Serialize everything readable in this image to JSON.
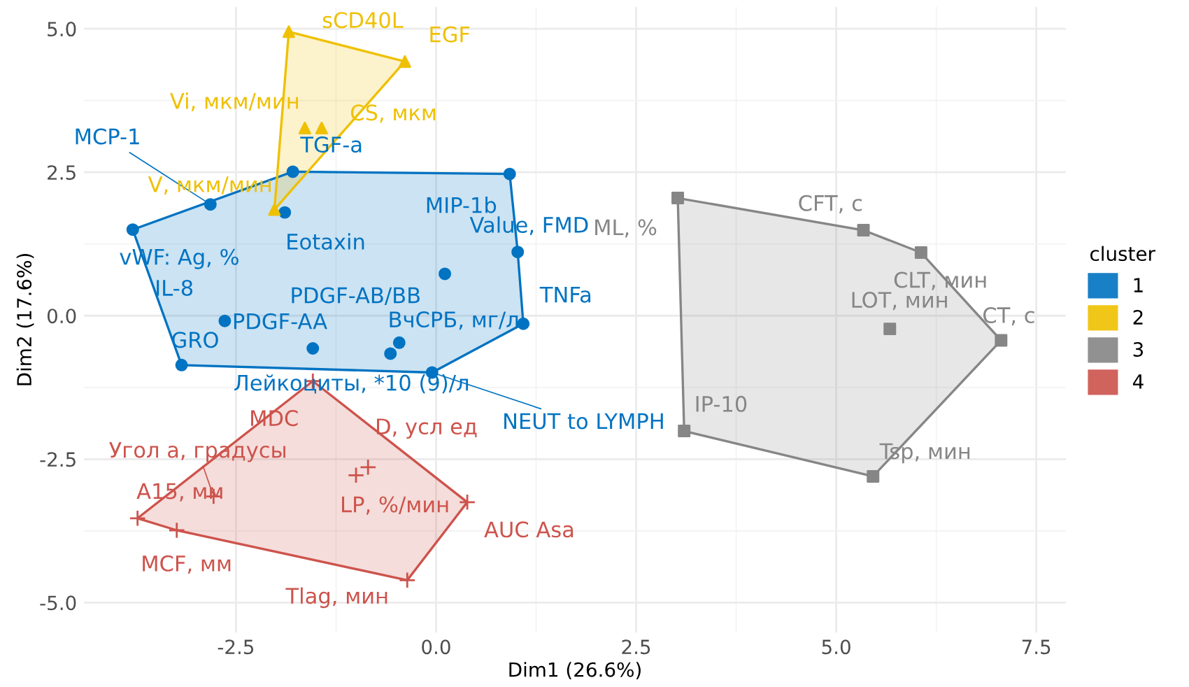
{
  "chart_data": {
    "type": "scatter",
    "xlabel": "Dim1 (26.6%)",
    "ylabel": "Dim2 (17.6%)",
    "legend_title": "cluster",
    "legend": "right",
    "grid": true,
    "xlim": [
      -4.4,
      7.87
    ],
    "ylim": [
      -5.52,
      5.38
    ],
    "xticks": [
      {
        "value": -2.5,
        "label": "-2.5"
      },
      {
        "value": 0,
        "label": "0.0"
      },
      {
        "value": 2.5,
        "label": "2.5"
      },
      {
        "value": 5,
        "label": "5.0"
      },
      {
        "value": 7.5,
        "label": "7.5"
      }
    ],
    "yticks": [
      {
        "value": -5,
        "label": "-5.0"
      },
      {
        "value": -2.5,
        "label": "-2.5"
      },
      {
        "value": 0,
        "label": "0.0"
      },
      {
        "value": 2.5,
        "label": "2.5"
      },
      {
        "value": 5,
        "label": "5.0"
      }
    ],
    "series": [
      {
        "name": "1",
        "color": "#0073c2",
        "marker": "circle",
        "x": [
          -1.79,
          0.92,
          -2.82,
          -3.79,
          -1.89,
          1.02,
          0.11,
          1.09,
          -2.64,
          -3.18,
          -1.54,
          -0.46,
          -0.57,
          -0.05
        ],
        "values": [
          2.51,
          2.47,
          1.94,
          1.5,
          1.8,
          1.11,
          0.73,
          -0.14,
          -0.09,
          -0.86,
          -0.57,
          -0.47,
          -0.66,
          -0.99
        ],
        "value_labels": [
          "TGF-a",
          "MIP-1b",
          "MCP-1",
          "vWF: Ag, %",
          "Eotaxin",
          "Value, FMD",
          "PDGF-AB/BB",
          "TNFa",
          "IL-8",
          "GRO",
          "PDGF-AA",
          "ВчСРБ, мг/л",
          "Лейкоциты, *10 (9)/л",
          "NEUT to LYMPH"
        ]
      },
      {
        "name": "2",
        "color": "#efc000",
        "marker": "triangle",
        "x": [
          -1.84,
          -0.39,
          -1.64,
          -1.43,
          -2.02
        ],
        "values": [
          4.95,
          4.43,
          3.27,
          3.27,
          1.85
        ],
        "value_labels": [
          "sCD40L",
          "EGF",
          "Vi, мкм/мин",
          "CS, мкм",
          "V, мкм/мин"
        ]
      },
      {
        "name": "3",
        "color": "#868686",
        "marker": "square",
        "x": [
          3.02,
          5.34,
          6.06,
          5.67,
          7.06,
          3.1,
          5.46
        ],
        "values": [
          2.05,
          1.49,
          1.1,
          -0.23,
          -0.43,
          -2.01,
          -2.8
        ],
        "value_labels": [
          "ML, %",
          "CFT, c",
          "CLT, мин",
          "LOT, мин",
          "CT, c",
          "IP-10",
          "Tsp, мин"
        ]
      },
      {
        "name": "4",
        "color": "#cd534c",
        "marker": "cross",
        "x": [
          -1.54,
          -0.85,
          -1.0,
          -2.78,
          -3.73,
          -3.24,
          0.39,
          -0.36
        ],
        "values": [
          -1.14,
          -2.64,
          -2.78,
          -3.15,
          -3.53,
          -3.74,
          -3.25,
          -4.61
        ],
        "value_labels": [
          "MDC",
          "D, усл ед",
          "LP, %/мин",
          "Угол а, градусы",
          "A15, мм",
          "MCF, мм",
          "AUC Asa",
          "Tlag, мин"
        ]
      }
    ]
  }
}
